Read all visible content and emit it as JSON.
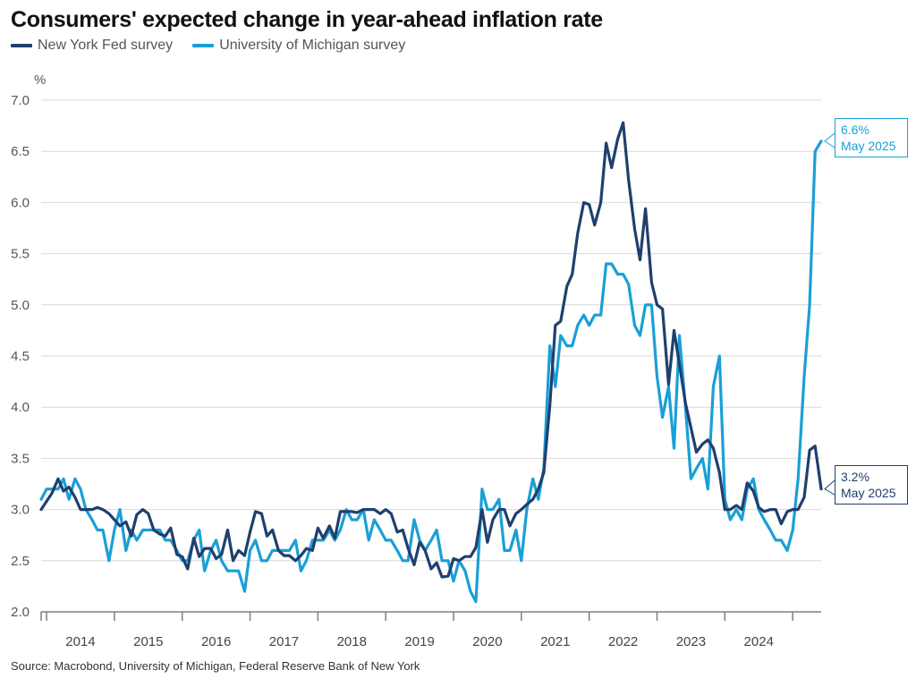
{
  "colors": {
    "nyfed": "#1f3f6e",
    "umich": "#1a9fd6",
    "grid": "#d9d9d9",
    "axis": "#7f7f7f"
  },
  "legend": {
    "nyfed_label": "New York Fed survey",
    "umich_label": "University of Michigan survey"
  },
  "source": "Source: Macrobond, University of Michigan, Federal Reserve Bank of New York",
  "callouts": {
    "umich": {
      "value": "6.6%",
      "date": "May 2025"
    },
    "nyfed": {
      "value": "3.2%",
      "date": "May 2025"
    }
  },
  "chart_data": {
    "type": "line",
    "title": "Consumers' expected change in year-ahead inflation rate",
    "ylabel": "%",
    "xlabel": "",
    "ylim": [
      2.0,
      7.0
    ],
    "yticks": [
      "2.0",
      "2.5",
      "3.0",
      "3.5",
      "4.0",
      "4.5",
      "5.0",
      "5.5",
      "6.0",
      "6.5",
      "7.0"
    ],
    "xlim": [
      2013.92,
      2025.42
    ],
    "x_tick_boundaries": [
      2014,
      2015,
      2016,
      2017,
      2018,
      2019,
      2020,
      2021,
      2022,
      2023,
      2024,
      2025
    ],
    "x_tick_labels": [
      "2014",
      "2015",
      "2016",
      "2017",
      "2018",
      "2019",
      "2020",
      "2021",
      "2022",
      "2023",
      "2024"
    ],
    "grid": true,
    "series": [
      {
        "name": "New York Fed survey",
        "points": [
          [
            2013.92,
            3.0
          ],
          [
            2014.0,
            3.08
          ],
          [
            2014.08,
            3.16
          ],
          [
            2014.17,
            3.3
          ],
          [
            2014.25,
            3.18
          ],
          [
            2014.33,
            3.22
          ],
          [
            2014.42,
            3.12
          ],
          [
            2014.5,
            3.0
          ],
          [
            2014.58,
            3.0
          ],
          [
            2014.67,
            3.0
          ],
          [
            2014.75,
            3.02
          ],
          [
            2014.83,
            3.0
          ],
          [
            2014.92,
            2.96
          ],
          [
            2015.0,
            2.9
          ],
          [
            2015.08,
            2.84
          ],
          [
            2015.17,
            2.88
          ],
          [
            2015.25,
            2.74
          ],
          [
            2015.33,
            2.95
          ],
          [
            2015.42,
            3.0
          ],
          [
            2015.5,
            2.96
          ],
          [
            2015.58,
            2.8
          ],
          [
            2015.67,
            2.76
          ],
          [
            2015.75,
            2.74
          ],
          [
            2015.83,
            2.82
          ],
          [
            2015.92,
            2.56
          ],
          [
            2016.0,
            2.54
          ],
          [
            2016.08,
            2.42
          ],
          [
            2016.17,
            2.72
          ],
          [
            2016.25,
            2.54
          ],
          [
            2016.33,
            2.62
          ],
          [
            2016.42,
            2.62
          ],
          [
            2016.5,
            2.52
          ],
          [
            2016.58,
            2.56
          ],
          [
            2016.67,
            2.8
          ],
          [
            2016.75,
            2.5
          ],
          [
            2016.83,
            2.6
          ],
          [
            2016.92,
            2.55
          ],
          [
            2017.0,
            2.78
          ],
          [
            2017.08,
            2.98
          ],
          [
            2017.17,
            2.96
          ],
          [
            2017.25,
            2.74
          ],
          [
            2017.33,
            2.8
          ],
          [
            2017.42,
            2.6
          ],
          [
            2017.5,
            2.55
          ],
          [
            2017.58,
            2.55
          ],
          [
            2017.67,
            2.5
          ],
          [
            2017.75,
            2.55
          ],
          [
            2017.83,
            2.62
          ],
          [
            2017.92,
            2.6
          ],
          [
            2018.0,
            2.82
          ],
          [
            2018.08,
            2.72
          ],
          [
            2018.17,
            2.84
          ],
          [
            2018.25,
            2.72
          ],
          [
            2018.33,
            2.98
          ],
          [
            2018.42,
            2.98
          ],
          [
            2018.5,
            2.98
          ],
          [
            2018.58,
            2.97
          ],
          [
            2018.67,
            3.0
          ],
          [
            2018.75,
            3.0
          ],
          [
            2018.83,
            3.0
          ],
          [
            2018.92,
            2.96
          ],
          [
            2019.0,
            3.0
          ],
          [
            2019.08,
            2.96
          ],
          [
            2019.17,
            2.78
          ],
          [
            2019.25,
            2.8
          ],
          [
            2019.33,
            2.62
          ],
          [
            2019.42,
            2.46
          ],
          [
            2019.5,
            2.68
          ],
          [
            2019.58,
            2.6
          ],
          [
            2019.67,
            2.42
          ],
          [
            2019.75,
            2.48
          ],
          [
            2019.83,
            2.34
          ],
          [
            2019.92,
            2.35
          ],
          [
            2020.0,
            2.52
          ],
          [
            2020.08,
            2.5
          ],
          [
            2020.17,
            2.54
          ],
          [
            2020.25,
            2.54
          ],
          [
            2020.33,
            2.63
          ],
          [
            2020.42,
            3.0
          ],
          [
            2020.5,
            2.68
          ],
          [
            2020.58,
            2.9
          ],
          [
            2020.67,
            3.0
          ],
          [
            2020.75,
            3.0
          ],
          [
            2020.83,
            2.84
          ],
          [
            2020.92,
            2.96
          ],
          [
            2021.0,
            3.0
          ],
          [
            2021.08,
            3.05
          ],
          [
            2021.17,
            3.1
          ],
          [
            2021.25,
            3.2
          ],
          [
            2021.33,
            3.36
          ],
          [
            2021.42,
            4.02
          ],
          [
            2021.5,
            4.8
          ],
          [
            2021.58,
            4.84
          ],
          [
            2021.67,
            5.18
          ],
          [
            2021.75,
            5.3
          ],
          [
            2021.83,
            5.7
          ],
          [
            2021.92,
            6.0
          ],
          [
            2022.0,
            5.98
          ],
          [
            2022.08,
            5.78
          ],
          [
            2022.17,
            6.0
          ],
          [
            2022.25,
            6.58
          ],
          [
            2022.33,
            6.34
          ],
          [
            2022.42,
            6.62
          ],
          [
            2022.5,
            6.78
          ],
          [
            2022.58,
            6.22
          ],
          [
            2022.67,
            5.74
          ],
          [
            2022.75,
            5.44
          ],
          [
            2022.83,
            5.94
          ],
          [
            2022.92,
            5.22
          ],
          [
            2023.0,
            5.0
          ],
          [
            2023.08,
            4.96
          ],
          [
            2023.17,
            4.22
          ],
          [
            2023.25,
            4.75
          ],
          [
            2023.33,
            4.42
          ],
          [
            2023.42,
            4.04
          ],
          [
            2023.5,
            3.8
          ],
          [
            2023.58,
            3.56
          ],
          [
            2023.67,
            3.64
          ],
          [
            2023.75,
            3.68
          ],
          [
            2023.83,
            3.6
          ],
          [
            2023.92,
            3.36
          ],
          [
            2024.0,
            3.0
          ],
          [
            2024.08,
            3.0
          ],
          [
            2024.17,
            3.04
          ],
          [
            2024.25,
            3.0
          ],
          [
            2024.33,
            3.26
          ],
          [
            2024.42,
            3.18
          ],
          [
            2024.5,
            3.02
          ],
          [
            2024.58,
            2.98
          ],
          [
            2024.67,
            3.0
          ],
          [
            2024.75,
            3.0
          ],
          [
            2024.83,
            2.86
          ],
          [
            2024.92,
            2.98
          ],
          [
            2025.0,
            3.0
          ],
          [
            2025.08,
            3.0
          ],
          [
            2025.17,
            3.12
          ],
          [
            2025.25,
            3.58
          ],
          [
            2025.33,
            3.62
          ],
          [
            2025.42,
            3.2
          ]
        ]
      },
      {
        "name": "University of Michigan survey",
        "points": [
          [
            2013.92,
            3.1
          ],
          [
            2014.0,
            3.2
          ],
          [
            2014.08,
            3.2
          ],
          [
            2014.17,
            3.2
          ],
          [
            2014.25,
            3.3
          ],
          [
            2014.33,
            3.1
          ],
          [
            2014.42,
            3.3
          ],
          [
            2014.5,
            3.2
          ],
          [
            2014.58,
            3.0
          ],
          [
            2014.67,
            2.9
          ],
          [
            2014.75,
            2.8
          ],
          [
            2014.83,
            2.8
          ],
          [
            2014.92,
            2.5
          ],
          [
            2015.0,
            2.8
          ],
          [
            2015.08,
            3.0
          ],
          [
            2015.17,
            2.6
          ],
          [
            2015.25,
            2.8
          ],
          [
            2015.33,
            2.7
          ],
          [
            2015.42,
            2.8
          ],
          [
            2015.5,
            2.8
          ],
          [
            2015.58,
            2.8
          ],
          [
            2015.67,
            2.8
          ],
          [
            2015.75,
            2.7
          ],
          [
            2015.83,
            2.7
          ],
          [
            2015.92,
            2.6
          ],
          [
            2016.0,
            2.5
          ],
          [
            2016.08,
            2.5
          ],
          [
            2016.17,
            2.7
          ],
          [
            2016.25,
            2.8
          ],
          [
            2016.33,
            2.4
          ],
          [
            2016.42,
            2.6
          ],
          [
            2016.5,
            2.7
          ],
          [
            2016.58,
            2.5
          ],
          [
            2016.67,
            2.4
          ],
          [
            2016.75,
            2.4
          ],
          [
            2016.83,
            2.4
          ],
          [
            2016.92,
            2.2
          ],
          [
            2017.0,
            2.6
          ],
          [
            2017.08,
            2.7
          ],
          [
            2017.17,
            2.5
          ],
          [
            2017.25,
            2.5
          ],
          [
            2017.33,
            2.6
          ],
          [
            2017.42,
            2.6
          ],
          [
            2017.5,
            2.6
          ],
          [
            2017.58,
            2.6
          ],
          [
            2017.67,
            2.7
          ],
          [
            2017.75,
            2.4
          ],
          [
            2017.83,
            2.5
          ],
          [
            2017.92,
            2.7
          ],
          [
            2018.0,
            2.7
          ],
          [
            2018.08,
            2.7
          ],
          [
            2018.17,
            2.8
          ],
          [
            2018.25,
            2.7
          ],
          [
            2018.33,
            2.8
          ],
          [
            2018.42,
            3.0
          ],
          [
            2018.5,
            2.9
          ],
          [
            2018.58,
            2.9
          ],
          [
            2018.67,
            3.0
          ],
          [
            2018.75,
            2.7
          ],
          [
            2018.83,
            2.9
          ],
          [
            2018.92,
            2.8
          ],
          [
            2019.0,
            2.7
          ],
          [
            2019.08,
            2.7
          ],
          [
            2019.17,
            2.6
          ],
          [
            2019.25,
            2.5
          ],
          [
            2019.33,
            2.5
          ],
          [
            2019.42,
            2.9
          ],
          [
            2019.5,
            2.7
          ],
          [
            2019.58,
            2.6
          ],
          [
            2019.67,
            2.7
          ],
          [
            2019.75,
            2.8
          ],
          [
            2019.83,
            2.5
          ],
          [
            2019.92,
            2.5
          ],
          [
            2020.0,
            2.3
          ],
          [
            2020.08,
            2.5
          ],
          [
            2020.17,
            2.4
          ],
          [
            2020.25,
            2.2
          ],
          [
            2020.33,
            2.1
          ],
          [
            2020.42,
            3.2
          ],
          [
            2020.5,
            3.0
          ],
          [
            2020.58,
            3.0
          ],
          [
            2020.67,
            3.1
          ],
          [
            2020.75,
            2.6
          ],
          [
            2020.83,
            2.6
          ],
          [
            2020.92,
            2.8
          ],
          [
            2021.0,
            2.5
          ],
          [
            2021.08,
            3.0
          ],
          [
            2021.17,
            3.3
          ],
          [
            2021.25,
            3.1
          ],
          [
            2021.33,
            3.4
          ],
          [
            2021.42,
            4.6
          ],
          [
            2021.5,
            4.2
          ],
          [
            2021.58,
            4.7
          ],
          [
            2021.67,
            4.6
          ],
          [
            2021.75,
            4.6
          ],
          [
            2021.83,
            4.8
          ],
          [
            2021.92,
            4.9
          ],
          [
            2022.0,
            4.8
          ],
          [
            2022.08,
            4.9
          ],
          [
            2022.17,
            4.9
          ],
          [
            2022.25,
            5.4
          ],
          [
            2022.33,
            5.4
          ],
          [
            2022.42,
            5.3
          ],
          [
            2022.5,
            5.3
          ],
          [
            2022.58,
            5.2
          ],
          [
            2022.67,
            4.8
          ],
          [
            2022.75,
            4.7
          ],
          [
            2022.83,
            5.0
          ],
          [
            2022.92,
            5.0
          ],
          [
            2023.0,
            4.3
          ],
          [
            2023.08,
            3.9
          ],
          [
            2023.17,
            4.2
          ],
          [
            2023.25,
            3.6
          ],
          [
            2023.33,
            4.7
          ],
          [
            2023.42,
            4.0
          ],
          [
            2023.5,
            3.3
          ],
          [
            2023.58,
            3.4
          ],
          [
            2023.67,
            3.5
          ],
          [
            2023.75,
            3.2
          ],
          [
            2023.83,
            4.2
          ],
          [
            2023.92,
            4.5
          ],
          [
            2024.0,
            3.1
          ],
          [
            2024.08,
            2.9
          ],
          [
            2024.17,
            3.0
          ],
          [
            2024.25,
            2.9
          ],
          [
            2024.33,
            3.2
          ],
          [
            2024.42,
            3.3
          ],
          [
            2024.5,
            3.0
          ],
          [
            2024.58,
            2.9
          ],
          [
            2024.67,
            2.8
          ],
          [
            2024.75,
            2.7
          ],
          [
            2024.83,
            2.7
          ],
          [
            2024.92,
            2.6
          ],
          [
            2025.0,
            2.8
          ],
          [
            2025.08,
            3.3
          ],
          [
            2025.17,
            4.3
          ],
          [
            2025.25,
            5.0
          ],
          [
            2025.33,
            6.5
          ],
          [
            2025.42,
            6.6
          ]
        ]
      }
    ]
  }
}
